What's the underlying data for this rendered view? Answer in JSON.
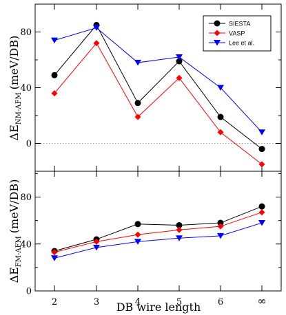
{
  "chart_data": [
    {
      "type": "line",
      "categories": [
        "2",
        "3",
        "4",
        "5",
        "6",
        "∞"
      ],
      "ylabel_main": "ΔE",
      "ylabel_sub": "NM-AFM",
      "ylabel_unit": "(meV/DB)",
      "ylim": [
        -20,
        100
      ],
      "yticks": [
        0,
        40,
        80
      ],
      "reference_line": 0,
      "legend_placement": "top-right",
      "series": [
        {
          "name": "SIESTA",
          "color": "#000000",
          "marker": "circle",
          "values": [
            49,
            85,
            29,
            59,
            19,
            -4
          ]
        },
        {
          "name": "VASP",
          "color": "#ff0000",
          "marker": "diamond",
          "values": [
            36,
            72,
            19,
            47,
            8,
            -15
          ]
        },
        {
          "name": "Lee et al.",
          "color": "#0000ff",
          "marker": "triangle-down",
          "values": [
            74,
            83,
            58,
            62,
            40,
            8
          ]
        }
      ]
    },
    {
      "type": "line",
      "categories": [
        "2",
        "3",
        "4",
        "5",
        "6",
        "∞"
      ],
      "xlabel": "DB wire length",
      "ylabel_main": "ΔE",
      "ylabel_sub": "FM-AFM",
      "ylabel_unit": "(meV/DB)",
      "ylim": [
        0,
        102
      ],
      "yticks": [
        0,
        40,
        80
      ],
      "series": [
        {
          "name": "SIESTA",
          "color": "#000000",
          "marker": "circle",
          "values": [
            34,
            44,
            57,
            56,
            58,
            72
          ]
        },
        {
          "name": "VASP",
          "color": "#ff0000",
          "marker": "diamond",
          "values": [
            33,
            42,
            48,
            52,
            55,
            67
          ]
        },
        {
          "name": "Lee et al.",
          "color": "#0000ff",
          "marker": "triangle-down",
          "values": [
            28,
            37,
            42,
            45,
            47,
            58
          ]
        }
      ]
    }
  ]
}
